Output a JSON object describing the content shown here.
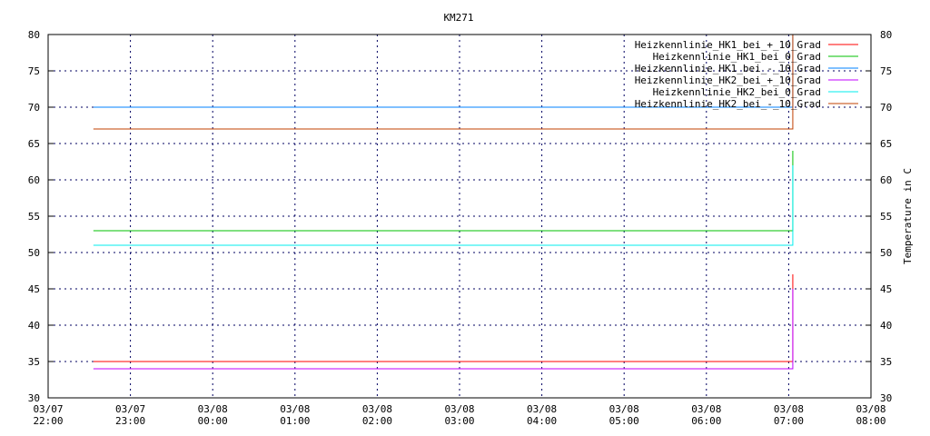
{
  "chart_data": {
    "type": "line",
    "title": "KM271",
    "xlabel": "",
    "ylabel": "Temperature in C",
    "ylim": [
      30,
      80
    ],
    "xlim": [
      "03/07 22:00",
      "03/08 08:00"
    ],
    "grid": true,
    "legend_position": "top-right",
    "yticks": [
      30,
      35,
      40,
      45,
      50,
      55,
      60,
      65,
      70,
      75,
      80
    ],
    "xticks": [
      [
        "03/07",
        "22:00"
      ],
      [
        "03/07",
        "23:00"
      ],
      [
        "03/08",
        "00:00"
      ],
      [
        "03/08",
        "01:00"
      ],
      [
        "03/08",
        "02:00"
      ],
      [
        "03/08",
        "03:00"
      ],
      [
        "03/08",
        "04:00"
      ],
      [
        "03/08",
        "05:00"
      ],
      [
        "03/08",
        "06:00"
      ],
      [
        "03/08",
        "07:00"
      ],
      [
        "03/08",
        "08:00"
      ]
    ],
    "series": [
      {
        "name": "Heizkennlinie_HK1_bei_+_10_Grad",
        "color": "#ff0000",
        "points": [
          [
            "22:33",
            35
          ],
          [
            "07:03",
            35
          ],
          [
            "07:03",
            47
          ]
        ]
      },
      {
        "name": "Heizkennlinie_HK1_bei_0_Grad",
        "color": "#00c000",
        "points": [
          [
            "22:33",
            53
          ],
          [
            "07:03",
            53
          ],
          [
            "07:03",
            64
          ]
        ]
      },
      {
        "name": "Heizkennlinie_HK1_bei_-_10_Grad",
        "color": "#0080ff",
        "points": [
          [
            "22:33",
            70
          ],
          [
            "07:03",
            70
          ],
          [
            "07:03",
            82
          ]
        ]
      },
      {
        "name": "Heizkennlinie_HK2_bei_+_10_Grad",
        "color": "#c000ff",
        "points": [
          [
            "22:33",
            34
          ],
          [
            "07:03",
            34
          ],
          [
            "07:03",
            45
          ]
        ]
      },
      {
        "name": "Heizkennlinie_HK2_bei_0_Grad",
        "color": "#00eeee",
        "points": [
          [
            "22:33",
            51
          ],
          [
            "07:03",
            51
          ],
          [
            "07:03",
            62
          ]
        ]
      },
      {
        "name": "Heizkennlinie_HK2_bei_-_10_Grad",
        "color": "#c04000",
        "points": [
          [
            "22:33",
            67
          ],
          [
            "07:03",
            67
          ],
          [
            "07:03",
            80
          ]
        ]
      }
    ]
  }
}
